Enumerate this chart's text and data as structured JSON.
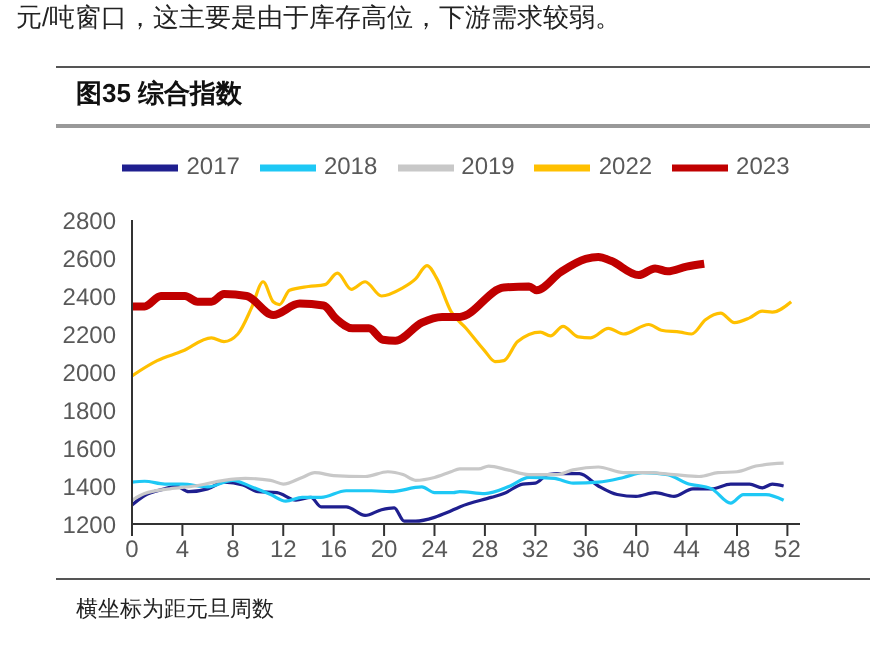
{
  "chart_data": {
    "type": "line",
    "title": "图35 综合指数",
    "annotations": [
      "元/吨窗口，这主要是由于库存高位，下游需求较弱。",
      "横坐标为距元旦周数"
    ],
    "series": [
      {
        "name": "2017",
        "color": "#1f1f8f",
        "x": [
          0,
          1,
          2.6,
          3.5,
          4.5,
          6,
          7.3,
          8.8,
          10,
          11.5,
          13,
          14.2,
          15,
          17,
          18.5,
          19.8,
          20.8,
          21.6,
          22.5,
          24,
          25,
          26,
          28.5,
          29.5,
          31,
          32,
          33,
          34,
          35.5,
          37,
          38.5,
          40,
          41.5,
          43,
          44.5,
          46,
          47.5,
          49,
          50,
          50.8,
          51.7
        ],
        "values": [
          1300,
          1350,
          1385,
          1400,
          1370,
          1385,
          1420,
          1405,
          1370,
          1365,
          1325,
          1340,
          1290,
          1290,
          1245,
          1275,
          1285,
          1215,
          1215,
          1235,
          1260,
          1290,
          1340,
          1360,
          1410,
          1415,
          1460,
          1465,
          1465,
          1400,
          1355,
          1345,
          1365,
          1345,
          1385,
          1385,
          1410,
          1410,
          1390,
          1410,
          1400
        ]
      },
      {
        "name": "2018",
        "color": "#1ec8f5",
        "x": [
          0,
          1,
          2.6,
          4,
          6,
          8,
          9.5,
          11,
          12.2,
          13.5,
          15,
          17,
          19,
          20.5,
          23,
          24,
          25.5,
          26,
          28,
          30,
          31.5,
          33.5,
          35,
          37,
          39,
          40.5,
          42.5,
          44,
          46,
          47.5,
          48.5,
          50.3,
          51.7
        ],
        "values": [
          1420,
          1425,
          1410,
          1410,
          1395,
          1430,
          1395,
          1355,
          1320,
          1340,
          1340,
          1375,
          1375,
          1370,
          1395,
          1365,
          1365,
          1370,
          1360,
          1400,
          1445,
          1440,
          1415,
          1420,
          1445,
          1470,
          1460,
          1415,
          1385,
          1310,
          1355,
          1355,
          1325
        ]
      },
      {
        "name": "2019",
        "color": "#c8c8c8",
        "x": [
          0,
          1,
          3,
          5,
          7.3,
          9,
          11,
          12,
          13.5,
          14.5,
          16,
          18.5,
          20.3,
          21.5,
          22.5,
          24,
          25.3,
          26,
          27.5,
          28.3,
          29.8,
          31.5,
          33.7,
          35,
          37,
          39,
          41,
          43,
          45,
          46.5,
          48,
          49.5,
          51.7
        ],
        "values": [
          1325,
          1360,
          1385,
          1400,
          1430,
          1440,
          1430,
          1410,
          1445,
          1470,
          1455,
          1450,
          1475,
          1460,
          1430,
          1445,
          1475,
          1490,
          1490,
          1505,
          1485,
          1460,
          1460,
          1485,
          1500,
          1470,
          1470,
          1460,
          1450,
          1470,
          1475,
          1505,
          1520
        ]
      },
      {
        "name": "2022",
        "color": "#ffc000",
        "x": [
          0,
          2,
          4,
          6.3,
          7.3,
          8.4,
          9.5,
          10.4,
          11.2,
          11.7,
          12.5,
          14,
          15.3,
          16.3,
          17.4,
          18.5,
          19.8,
          21.4,
          22.5,
          23.4,
          24.2,
          25.3,
          26.5,
          28,
          28.8,
          29.5,
          30.6,
          32.4,
          33.2,
          34.2,
          35.4,
          36.4,
          37.8,
          39,
          41,
          42,
          43.5,
          44.4,
          45.5,
          46.7,
          47.8,
          49,
          50,
          50.8,
          52.3
        ],
        "values": [
          1980,
          2060,
          2110,
          2180,
          2160,
          2200,
          2340,
          2475,
          2370,
          2355,
          2430,
          2450,
          2460,
          2520,
          2435,
          2475,
          2400,
          2440,
          2490,
          2560,
          2490,
          2320,
          2230,
          2110,
          2055,
          2060,
          2160,
          2210,
          2190,
          2240,
          2185,
          2180,
          2230,
          2200,
          2250,
          2220,
          2210,
          2200,
          2275,
          2310,
          2260,
          2285,
          2320,
          2315,
          2370
        ]
      },
      {
        "name": "2023",
        "color": "#c00000",
        "x": [
          0,
          1,
          2.3,
          4.2,
          5.2,
          6.3,
          7.3,
          9.1,
          11.2,
          13.3,
          15.2,
          16.2,
          17.5,
          18.8,
          19.9,
          20.9,
          23,
          24.6,
          26,
          29.5,
          31.5,
          32.1,
          34,
          36,
          37,
          38,
          40.2,
          41.5,
          42.5,
          44,
          45.4
        ],
        "values": [
          2345,
          2345,
          2400,
          2400,
          2370,
          2370,
          2410,
          2400,
          2300,
          2360,
          2350,
          2280,
          2230,
          2230,
          2170,
          2165,
          2260,
          2290,
          2290,
          2445,
          2450,
          2430,
          2525,
          2595,
          2605,
          2585,
          2510,
          2545,
          2530,
          2555,
          2570
        ]
      }
    ],
    "xlim": [
      0,
      53
    ],
    "xticks": [
      0,
      4,
      8,
      12,
      16,
      20,
      24,
      28,
      32,
      36,
      40,
      44,
      48,
      52
    ],
    "ylim": [
      1200,
      2800
    ],
    "yticks": [
      1200,
      1400,
      1600,
      1800,
      2000,
      2200,
      2400,
      2600,
      2800
    ],
    "grid": false,
    "legend": "top",
    "marker": "none",
    "line_style": "solid"
  }
}
